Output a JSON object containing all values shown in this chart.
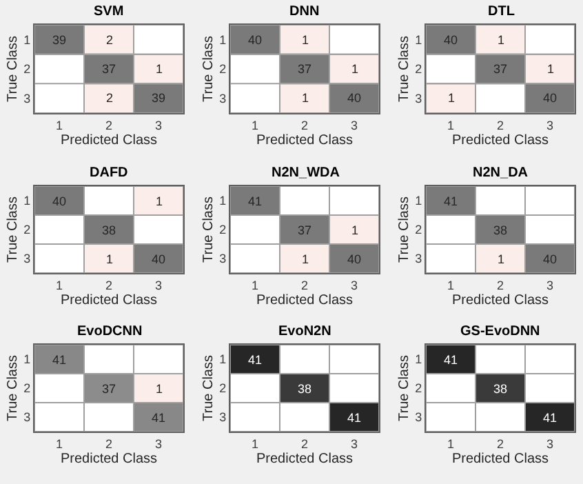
{
  "chart_data": [
    {
      "type": "heatmap",
      "title": "SVM",
      "xlabel": "Predicted Class",
      "ylabel": "True Class",
      "categories": [
        "1",
        "2",
        "3"
      ],
      "y_categories": [
        "1",
        "2",
        "3"
      ],
      "cells": [
        [
          39,
          2,
          null
        ],
        [
          null,
          37,
          1
        ],
        [
          null,
          2,
          39
        ]
      ],
      "colors": [
        [
          "#7a7a7a",
          "#fbeeea",
          null
        ],
        [
          null,
          "#7a7a7a",
          "#fbeeea"
        ],
        [
          null,
          "#fbeeea",
          "#7a7a7a"
        ]
      ],
      "data_labels": true
    },
    {
      "type": "heatmap",
      "title": "DNN",
      "xlabel": "Predicted Class",
      "ylabel": "True Class",
      "categories": [
        "1",
        "2",
        "3"
      ],
      "y_categories": [
        "1",
        "2",
        "3"
      ],
      "cells": [
        [
          40,
          1,
          null
        ],
        [
          null,
          37,
          1
        ],
        [
          null,
          1,
          40
        ]
      ],
      "colors": [
        [
          "#7a7a7a",
          "#fbeeea",
          null
        ],
        [
          null,
          "#7a7a7a",
          "#fbeeea"
        ],
        [
          null,
          "#fbeeea",
          "#7a7a7a"
        ]
      ],
      "data_labels": true
    },
    {
      "type": "heatmap",
      "title": "DTL",
      "xlabel": "Predicted Class",
      "ylabel": "True Class",
      "categories": [
        "1",
        "2",
        "3"
      ],
      "y_categories": [
        "1",
        "2",
        "3"
      ],
      "cells": [
        [
          40,
          1,
          null
        ],
        [
          null,
          37,
          1
        ],
        [
          1,
          null,
          40
        ]
      ],
      "colors": [
        [
          "#7a7a7a",
          "#fbeeea",
          null
        ],
        [
          null,
          "#7a7a7a",
          "#fbeeea"
        ],
        [
          "#fbeeea",
          null,
          "#7a7a7a"
        ]
      ],
      "data_labels": true
    },
    {
      "type": "heatmap",
      "title": "DAFD",
      "xlabel": "Predicted Class",
      "ylabel": "True Class",
      "categories": [
        "1",
        "2",
        "3"
      ],
      "y_categories": [
        "1",
        "2",
        "3"
      ],
      "cells": [
        [
          40,
          null,
          1
        ],
        [
          null,
          38,
          null
        ],
        [
          null,
          1,
          40
        ]
      ],
      "colors": [
        [
          "#7a7a7a",
          null,
          "#fbeeea"
        ],
        [
          null,
          "#7a7a7a",
          null
        ],
        [
          null,
          "#fbeeea",
          "#7a7a7a"
        ]
      ],
      "data_labels": true
    },
    {
      "type": "heatmap",
      "title": "N2N_WDA",
      "xlabel": "Predicted Class",
      "ylabel": "True Class",
      "categories": [
        "1",
        "2",
        "3"
      ],
      "y_categories": [
        "1",
        "2",
        "3"
      ],
      "cells": [
        [
          41,
          null,
          null
        ],
        [
          null,
          37,
          1
        ],
        [
          null,
          1,
          40
        ]
      ],
      "colors": [
        [
          "#7a7a7a",
          null,
          null
        ],
        [
          null,
          "#7a7a7a",
          "#fbeeea"
        ],
        [
          null,
          "#fbeeea",
          "#7a7a7a"
        ]
      ],
      "data_labels": true
    },
    {
      "type": "heatmap",
      "title": "N2N_DA",
      "xlabel": "Predicted Class",
      "ylabel": "True Class",
      "categories": [
        "1",
        "2",
        "3"
      ],
      "y_categories": [
        "1",
        "2",
        "3"
      ],
      "cells": [
        [
          41,
          null,
          null
        ],
        [
          null,
          38,
          null
        ],
        [
          null,
          1,
          40
        ]
      ],
      "colors": [
        [
          "#7a7a7a",
          null,
          null
        ],
        [
          null,
          "#7a7a7a",
          null
        ],
        [
          null,
          "#fbeeea",
          "#7a7a7a"
        ]
      ],
      "data_labels": true
    },
    {
      "type": "heatmap",
      "title": "EvoDCNN",
      "xlabel": "Predicted Class",
      "ylabel": "True Class",
      "categories": [
        "1",
        "2",
        "3"
      ],
      "y_categories": [
        "1",
        "2",
        "3"
      ],
      "cells": [
        [
          41,
          null,
          null
        ],
        [
          null,
          37,
          1
        ],
        [
          null,
          null,
          41
        ]
      ],
      "colors": [
        [
          "#888888",
          null,
          null
        ],
        [
          null,
          "#8c8c8c",
          "#fbeeea"
        ],
        [
          null,
          null,
          "#888888"
        ]
      ],
      "data_labels": true
    },
    {
      "type": "heatmap",
      "title": "EvoN2N",
      "xlabel": "Predicted Class",
      "ylabel": "True Class",
      "categories": [
        "1",
        "2",
        "3"
      ],
      "y_categories": [
        "1",
        "2",
        "3"
      ],
      "cells": [
        [
          41,
          null,
          null
        ],
        [
          null,
          38,
          null
        ],
        [
          null,
          null,
          41
        ]
      ],
      "colors": [
        [
          "#262626",
          null,
          null
        ],
        [
          null,
          "#3a3a3a",
          null
        ],
        [
          null,
          null,
          "#262626"
        ]
      ],
      "data_labels": true
    },
    {
      "type": "heatmap",
      "title": "GS-EvoDNN",
      "xlabel": "Predicted Class",
      "ylabel": "True Class",
      "categories": [
        "1",
        "2",
        "3"
      ],
      "y_categories": [
        "1",
        "2",
        "3"
      ],
      "cells": [
        [
          41,
          null,
          null
        ],
        [
          null,
          38,
          null
        ],
        [
          null,
          null,
          41
        ]
      ],
      "colors": [
        [
          "#262626",
          null,
          null
        ],
        [
          null,
          "#3a3a3a",
          null
        ],
        [
          null,
          null,
          "#262626"
        ]
      ],
      "data_labels": true
    }
  ]
}
